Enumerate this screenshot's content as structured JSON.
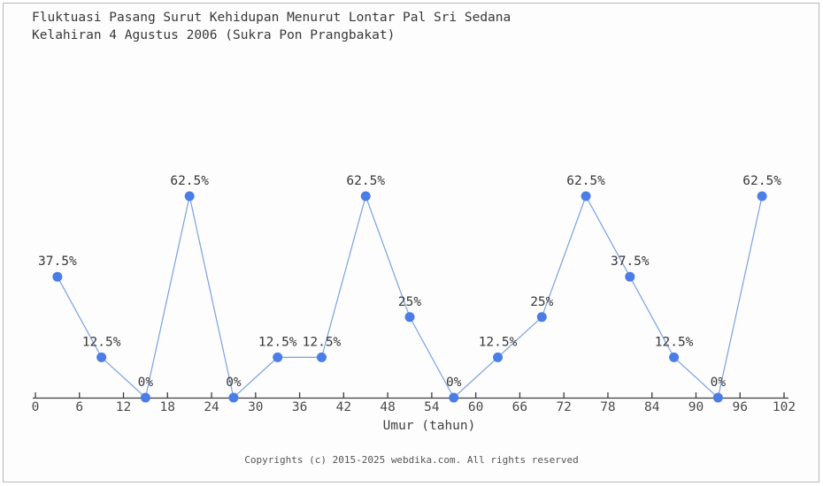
{
  "page": {
    "footer": "Copyrights (c) 2015-2025 webdika.com. All rights reserved"
  },
  "chart_data": {
    "type": "line",
    "title_lines": [
      "Fluktuasi Pasang Surut Kehidupan Menurut Lontar Pal Sri Sedana",
      "Kelahiran 4 Agustus 2006 (Sukra Pon Prangbakat)"
    ],
    "xlabel": "Umur (tahun)",
    "ylabel": "",
    "x": [
      3,
      9,
      15,
      21,
      27,
      33,
      39,
      45,
      51,
      57,
      63,
      69,
      75,
      81,
      87,
      93,
      99
    ],
    "values": [
      37.5,
      12.5,
      0,
      62.5,
      0,
      12.5,
      12.5,
      62.5,
      25,
      0,
      12.5,
      25,
      62.5,
      37.5,
      12.5,
      0,
      62.5
    ],
    "point_labels": [
      "37.5%",
      "12.5%",
      "0%",
      "62.5%",
      "0%",
      "12.5%",
      "12.5%",
      "62.5%",
      "25%",
      "0%",
      "12.5%",
      "25%",
      "62.5%",
      "37.5%",
      "12.5%",
      "0%",
      "62.5%"
    ],
    "x_ticks": [
      0,
      6,
      12,
      18,
      24,
      30,
      36,
      42,
      48,
      54,
      60,
      66,
      72,
      78,
      84,
      90,
      96,
      102
    ],
    "xlim": [
      0,
      102
    ],
    "ylim": [
      0,
      70
    ],
    "grid": false,
    "legend": null,
    "colors": {
      "marker": "#4b7de6",
      "line": "#7aa2e0",
      "axis": "#3c3c3c",
      "tick_label": "#4a4a4a",
      "point_label": "#383838",
      "title": "#383838"
    }
  }
}
